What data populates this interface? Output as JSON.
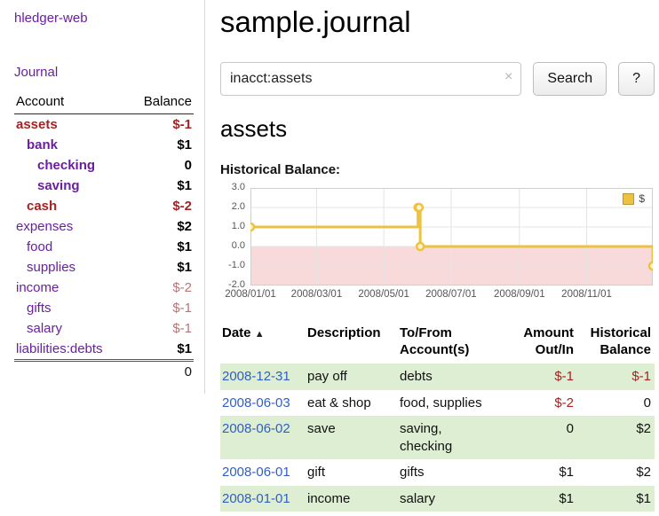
{
  "colors": {
    "link_purple": "#6a1fa2",
    "negative_strong": "#a32424",
    "negative_muted": "#b97474",
    "date_link_blue": "#2f5fc4",
    "row_highlight_green": "#ddeed2",
    "series_yellow": "#edc240"
  },
  "sidebar": {
    "app_link": "hledger-web",
    "journal_link": "Journal",
    "accounts": {
      "headers": {
        "account": "Account",
        "balance": "Balance"
      },
      "rows": [
        {
          "account": "assets",
          "balance": "$-1",
          "indent": 0,
          "strong": true,
          "negative": true
        },
        {
          "account": "bank",
          "balance": "$1",
          "indent": 1,
          "strong": true,
          "negative": false
        },
        {
          "account": "checking",
          "balance": "0",
          "indent": 2,
          "strong": true,
          "negative": false
        },
        {
          "account": "saving",
          "balance": "$1",
          "indent": 2,
          "strong": true,
          "negative": false
        },
        {
          "account": "cash",
          "balance": "$-2",
          "indent": 1,
          "strong": true,
          "negative": true
        },
        {
          "account": "expenses",
          "balance": "$2",
          "indent": 0,
          "strong": false,
          "negative": false
        },
        {
          "account": "food",
          "balance": "$1",
          "indent": 1,
          "strong": false,
          "negative": false
        },
        {
          "account": "supplies",
          "balance": "$1",
          "indent": 1,
          "strong": false,
          "negative": false
        },
        {
          "account": "income",
          "balance": "$-2",
          "indent": 0,
          "strong": false,
          "negative": true
        },
        {
          "account": "gifts",
          "balance": "$-1",
          "indent": 1,
          "strong": false,
          "negative": true
        },
        {
          "account": "salary",
          "balance": "$-1",
          "indent": 1,
          "strong": false,
          "negative": true
        },
        {
          "account": "liabilities:debts",
          "balance": "$1",
          "indent": 0,
          "strong": false,
          "negative": false
        }
      ],
      "total": "0"
    }
  },
  "main": {
    "title": "sample.journal",
    "search": {
      "query": "inacct:assets",
      "clear_icon": "×",
      "search_button": "Search",
      "help_button": "?"
    },
    "account_heading": "assets",
    "chart_title": "Historical Balance:"
  },
  "chart_data": {
    "type": "line",
    "title": "Historical Balance:",
    "x_range": [
      "2008-01-01",
      "2008-12-31"
    ],
    "y_range": [
      -2,
      3
    ],
    "x_ticks": [
      "2008/01/01",
      "2008/03/01",
      "2008/05/01",
      "2008/07/01",
      "2008/09/01",
      "2008/11/01"
    ],
    "y_ticks": [
      "3.0",
      "2.0",
      "1.0",
      "0.0",
      "-1.0",
      "-2.0"
    ],
    "grid": true,
    "legend_position": "top-right",
    "negative_region_color": "#f9dada",
    "grid_color": "#e4e4e4",
    "border_color": "#cfcfcf",
    "series": [
      {
        "name": "$",
        "color": "#edc240",
        "steps": true,
        "points": [
          [
            "2008-01-01",
            1
          ],
          [
            "2008-06-01",
            2
          ],
          [
            "2008-06-02",
            2
          ],
          [
            "2008-06-03",
            0
          ],
          [
            "2008-12-31",
            -1
          ]
        ]
      }
    ]
  },
  "register": {
    "headers": {
      "date": "Date",
      "sort_icon": "▲",
      "description": "Description",
      "to_from": "To/From\nAccount(s)",
      "amount": "Amount\nOut/In",
      "historical": "Historical\nBalance"
    },
    "rows": [
      {
        "date": "2008-12-31",
        "description": "pay off",
        "to_from": "debts",
        "amount": "$-1",
        "balance": "$-1",
        "highlight": true
      },
      {
        "date": "2008-06-03",
        "description": "eat & shop",
        "to_from": "food, supplies",
        "amount": "$-2",
        "balance": "0",
        "highlight": false
      },
      {
        "date": "2008-06-02",
        "description": "save",
        "to_from": "saving,\nchecking",
        "amount": "0",
        "balance": "$2",
        "highlight": true
      },
      {
        "date": "2008-06-01",
        "description": "gift",
        "to_from": "gifts",
        "amount": "$1",
        "balance": "$2",
        "highlight": false
      },
      {
        "date": "2008-01-01",
        "description": "income",
        "to_from": "salary",
        "amount": "$1",
        "balance": "$1",
        "highlight": true
      }
    ]
  }
}
